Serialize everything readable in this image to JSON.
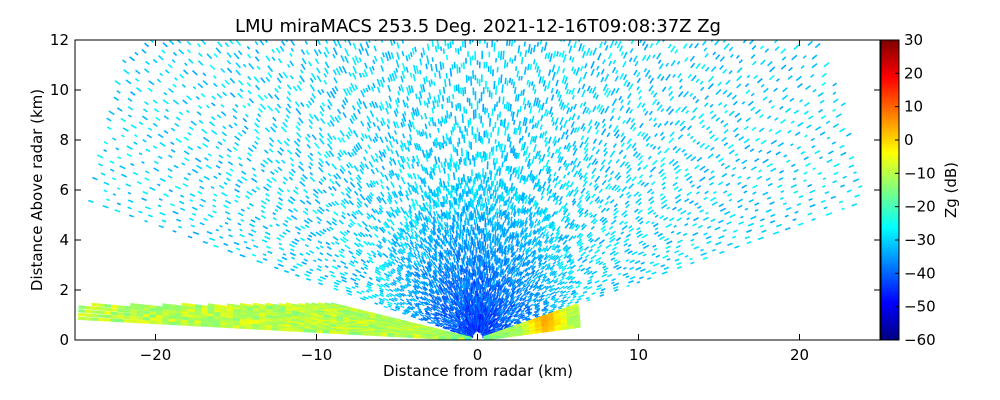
{
  "chart_data": {
    "type": "heatmap",
    "title": "LMU miraMACS 253.5 Deg. 2021-12-16T09:08:37Z  Zg",
    "xlabel": "Distance from radar (km)",
    "ylabel": "Distance Above radar  (km)",
    "xlim": [
      -25,
      25
    ],
    "ylim": [
      0,
      12
    ],
    "x_ticks": [
      -20,
      -10,
      0,
      10,
      20
    ],
    "y_ticks": [
      0,
      2,
      4,
      6,
      8,
      10,
      12
    ],
    "grid": false,
    "scan": {
      "type": "RHI",
      "max_range_km": 24.5,
      "elevation_min_deg": 13,
      "elevation_max_deg": 167
    },
    "colorbar": {
      "label": "Zg (dB)",
      "vmin": -60,
      "vmax": 30,
      "ticks": [
        30,
        20,
        10,
        0,
        -10,
        -20,
        -30,
        -40,
        -50,
        -60
      ],
      "colormap": "jet",
      "colormap_stops": [
        "#00007f",
        "#0000ff",
        "#0080ff",
        "#00ffff",
        "#80ff80",
        "#ffff00",
        "#ff8000",
        "#ff0000",
        "#7f0000"
      ]
    },
    "field": {
      "background_dbz": -30,
      "background_dbz_range": [
        -34,
        -26
      ],
      "near_radar_dbz": -44,
      "boundary_layer": {
        "top_km": 1.4,
        "dbz_range": [
          -15,
          -5
        ],
        "hotspot": {
          "x_km": 4,
          "y_km": 0.8,
          "dbz": 5
        }
      }
    }
  }
}
